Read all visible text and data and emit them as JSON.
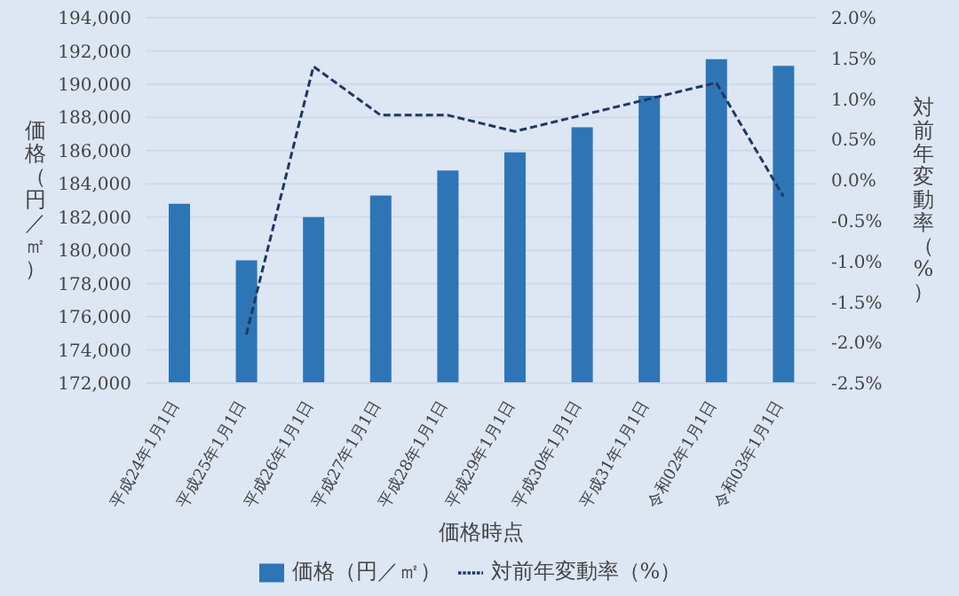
{
  "chart_data": {
    "type": "bar",
    "xlabel": "価格時点",
    "ylabel": "価格（円／㎡）",
    "y2label": "対前年変動率（%）",
    "categories": [
      "平成24年1月1日",
      "平成25年1月1日",
      "平成26年1月1日",
      "平成27年1月1日",
      "平成28年1月1日",
      "平成29年1月1日",
      "平成30年1月1日",
      "平成31年1月1日",
      "令和02年1月1日",
      "令和03年1月1日"
    ],
    "series": [
      {
        "name": "価格（円／㎡）",
        "color": "#2e75b6",
        "values": [
          182800,
          179400,
          182000,
          183300,
          184800,
          185900,
          187400,
          189300,
          191500,
          191100
        ]
      },
      {
        "name": "対前年変動率（%）",
        "type": "line",
        "axis": "y2",
        "color": "#1f3864",
        "line_style": "dashed",
        "marker": "none",
        "values": [
          null,
          -1.9,
          1.4,
          0.8,
          0.8,
          0.6,
          0.8,
          1.0,
          1.2,
          -0.2
        ]
      }
    ],
    "ylim": [
      172000,
      194000
    ],
    "yticks": [
      {
        "value": 172000,
        "label": "172,000"
      },
      {
        "value": 174000,
        "label": "174,000"
      },
      {
        "value": 176000,
        "label": "176,000"
      },
      {
        "value": 178000,
        "label": "178,000"
      },
      {
        "value": 180000,
        "label": "180,000"
      },
      {
        "value": 182000,
        "label": "182,000"
      },
      {
        "value": 184000,
        "label": "184,000"
      },
      {
        "value": 186000,
        "label": "186,000"
      },
      {
        "value": 188000,
        "label": "188,000"
      },
      {
        "value": 190000,
        "label": "190,000"
      },
      {
        "value": 192000,
        "label": "192,000"
      },
      {
        "value": 194000,
        "label": "194,000"
      }
    ],
    "y2lim": [
      -2.5,
      2.0
    ],
    "y2ticks": [
      {
        "value": -2.5,
        "label": "-2.5%"
      },
      {
        "value": -2.0,
        "label": "-2.0%"
      },
      {
        "value": -1.5,
        "label": "-1.5%"
      },
      {
        "value": -1.0,
        "label": "-1.0%"
      },
      {
        "value": -0.5,
        "label": "-0.5%"
      },
      {
        "value": 0,
        "label": "0.0%"
      },
      {
        "value": 0.5,
        "label": "0.5%"
      },
      {
        "value": 1.0,
        "label": "1.0%"
      },
      {
        "value": 1.5,
        "label": "1.5%"
      },
      {
        "value": 2.0,
        "label": "2.0%"
      }
    ],
    "grid": "y",
    "legend": "bottom"
  }
}
